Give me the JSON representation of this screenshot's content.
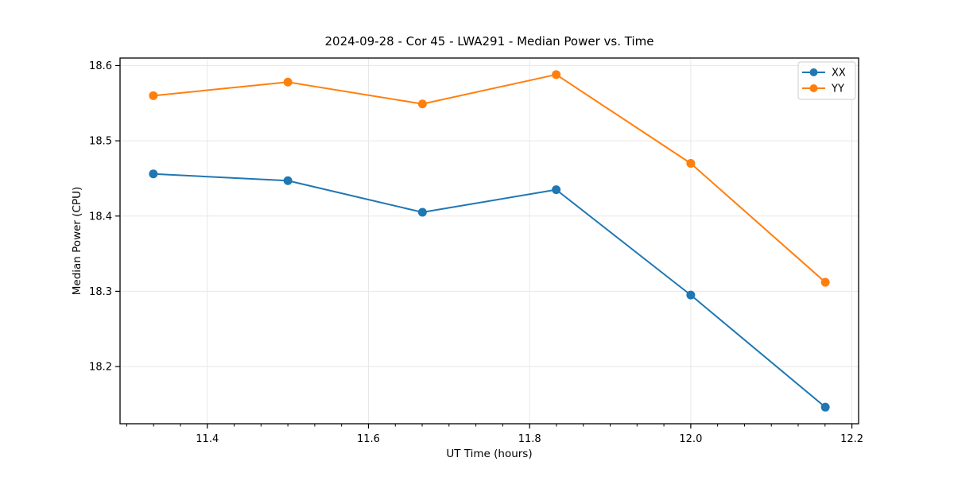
{
  "chart_data": {
    "type": "line",
    "title": "2024-09-28 - Cor 45 - LWA291 - Median Power vs. Time",
    "xlabel": "UT Time (hours)",
    "ylabel": "Median Power (CPU)",
    "x": [
      11.333,
      11.5,
      11.667,
      11.833,
      12.0,
      12.167
    ],
    "series": [
      {
        "name": "XX",
        "color": "#1f77b4",
        "values": [
          18.456,
          18.447,
          18.405,
          18.435,
          18.295,
          18.146
        ]
      },
      {
        "name": "YY",
        "color": "#ff7f0e",
        "values": [
          18.56,
          18.578,
          18.549,
          18.588,
          18.47,
          18.312
        ]
      }
    ],
    "xlim": [
      11.2917,
      12.2083
    ],
    "ylim": [
      18.124,
      18.61
    ],
    "xticks": [
      11.4,
      11.6,
      11.8,
      12.0,
      12.2
    ],
    "yticks": [
      18.2,
      18.3,
      18.4,
      18.5,
      18.6
    ],
    "x_minor_step": 0.0333333,
    "tick_decimals": 1,
    "grid": true,
    "grid_color": "#e8e8e8",
    "axis_color": "#000000",
    "marker": "o",
    "legend": {
      "position": "upper right",
      "entries": [
        "XX",
        "YY"
      ]
    }
  }
}
